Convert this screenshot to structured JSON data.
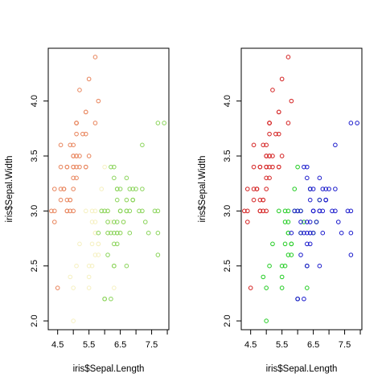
{
  "chart_data": [
    {
      "type": "scatter",
      "xlabel": "iris$Sepal.Length",
      "ylabel": "iris$Sepal.Width",
      "xlim": [
        4.2,
        8.05
      ],
      "ylim": [
        1.92,
        4.48
      ],
      "xticks": [
        "4.5",
        "5.5",
        "6.5",
        "7.5"
      ],
      "xtick_values": [
        4.5,
        5.5,
        6.5,
        7.5
      ],
      "xminor_ticks": [
        5.0,
        6.0,
        7.0,
        8.0
      ],
      "yticks": [
        "2.0",
        "2.5",
        "3.0",
        "3.5",
        "4.0"
      ],
      "ytick_values": [
        2.0,
        2.5,
        3.0,
        3.5,
        4.0
      ],
      "grid": false,
      "marker": "open-circle",
      "series": [
        {
          "color": "#e8835a",
          "x": [
            5.1,
            4.9,
            4.7,
            4.6,
            5.0,
            5.4,
            4.6,
            5.0,
            4.4,
            4.9,
            5.4,
            4.8,
            4.8,
            4.3,
            5.8,
            5.7,
            5.4,
            5.1,
            5.7,
            5.1,
            5.4,
            5.1,
            4.6,
            5.1,
            4.8,
            5.0,
            5.0,
            5.2,
            5.2,
            4.7,
            4.8,
            5.4,
            5.2,
            5.5,
            4.9,
            5.0,
            5.5,
            4.9,
            4.4,
            5.1,
            5.0,
            4.5,
            4.4,
            5.0,
            5.1,
            4.8,
            5.1,
            4.6,
            5.3,
            5.0
          ],
          "y": [
            3.5,
            3.0,
            3.2,
            3.1,
            3.6,
            3.9,
            3.4,
            3.4,
            2.9,
            3.1,
            3.7,
            3.4,
            3.0,
            3.0,
            4.0,
            4.4,
            3.9,
            3.5,
            3.8,
            3.8,
            3.4,
            3.7,
            3.6,
            3.3,
            3.4,
            3.0,
            3.4,
            3.5,
            3.4,
            3.2,
            3.1,
            3.4,
            4.1,
            4.2,
            3.1,
            3.2,
            3.5,
            3.6,
            3.0,
            3.4,
            3.5,
            2.3,
            3.2,
            3.5,
            3.8,
            3.0,
            3.8,
            3.2,
            3.7,
            3.3
          ]
        },
        {
          "color": "#f5f0c0",
          "x": [
            5.5,
            4.9,
            5.2,
            5.0,
            5.6,
            5.7,
            5.8,
            5.6,
            5.7,
            5.5,
            5.4,
            5.6,
            6.0,
            6.0,
            5.5,
            5.7,
            5.8,
            5.0,
            5.6,
            5.7,
            5.1,
            5.9,
            6.1,
            5.8,
            6.3,
            6.1,
            6.4,
            6.6,
            5.9,
            6.2,
            6.0,
            6.5,
            6.3,
            6.7,
            5.7
          ],
          "y": [
            2.3,
            2.4,
            2.7,
            2.0,
            2.9,
            2.6,
            2.7,
            2.5,
            2.8,
            2.4,
            3.0,
            3.0,
            3.4,
            2.2,
            2.5,
            3.0,
            2.6,
            2.3,
            2.7,
            2.9,
            2.5,
            3.0,
            2.8,
            2.7,
            2.5,
            3.0,
            3.2,
            2.9,
            3.2,
            2.9,
            3.0,
            2.8,
            2.3,
            3.1,
            2.8
          ]
        },
        {
          "color": "#8ad45a",
          "x": [
            7.0,
            6.4,
            6.9,
            6.5,
            6.3,
            6.6,
            6.1,
            6.7,
            6.2,
            6.8,
            6.7,
            6.3,
            6.9,
            6.1,
            6.7,
            6.0,
            6.4,
            6.1,
            7.7,
            6.3,
            7.2,
            7.7,
            6.0,
            6.3,
            7.2,
            6.4,
            6.9,
            6.3,
            7.6,
            7.3,
            6.7,
            7.2,
            6.5,
            6.4,
            6.8,
            5.8,
            6.4,
            6.5,
            7.7,
            7.9,
            7.4,
            7.1,
            6.9,
            6.5,
            6.7,
            6.2,
            5.9,
            6.3,
            7.7,
            6.1,
            6.4,
            6.2,
            6.0,
            6.5,
            6.3,
            6.8,
            6.4,
            6.9
          ],
          "y": [
            3.2,
            3.2,
            3.1,
            2.8,
            3.3,
            2.9,
            2.9,
            3.1,
            2.2,
            2.8,
            3.0,
            2.5,
            3.1,
            2.8,
            3.0,
            2.2,
            2.9,
            3.0,
            3.8,
            2.7,
            3.2,
            2.6,
            2.2,
            2.8,
            3.0,
            2.8,
            3.1,
            3.4,
            3.0,
            2.9,
            2.5,
            3.6,
            3.2,
            2.7,
            3.0,
            2.8,
            3.2,
            3.0,
            3.0,
            3.8,
            2.8,
            3.0,
            3.2,
            3.0,
            3.3,
            3.4,
            3.0,
            2.5,
            2.8,
            2.6,
            3.1,
            2.8,
            3.0,
            3.0,
            2.9,
            3.2,
            2.8,
            3.1
          ]
        }
      ]
    },
    {
      "type": "scatter",
      "xlabel": "iris$Sepal.Length",
      "ylabel": "iris$Sepal.Width",
      "xlim": [
        4.2,
        8.05
      ],
      "ylim": [
        1.92,
        4.48
      ],
      "xticks": [
        "4.5",
        "5.5",
        "6.5",
        "7.5"
      ],
      "xtick_values": [
        4.5,
        5.5,
        6.5,
        7.5
      ],
      "xminor_ticks": [
        5.0,
        6.0,
        7.0,
        8.0
      ],
      "yticks": [
        "2.0",
        "2.5",
        "3.0",
        "3.5",
        "4.0"
      ],
      "ytick_values": [
        2.0,
        2.5,
        3.0,
        3.5,
        4.0
      ],
      "grid": false,
      "marker": "open-circle",
      "series": [
        {
          "color": "#d42020",
          "x": [
            5.1,
            4.9,
            4.7,
            4.6,
            5.0,
            5.4,
            4.6,
            5.0,
            4.4,
            4.9,
            5.4,
            4.8,
            4.8,
            4.3,
            5.8,
            5.7,
            5.4,
            5.1,
            5.7,
            5.1,
            5.4,
            5.1,
            4.6,
            5.1,
            4.8,
            5.0,
            5.0,
            5.2,
            5.2,
            4.7,
            4.8,
            5.4,
            5.2,
            5.5,
            4.9,
            5.0,
            5.5,
            4.9,
            4.4,
            5.1,
            5.0,
            4.5,
            4.4,
            5.0,
            5.1,
            4.8,
            5.1,
            4.6,
            5.3,
            5.0
          ],
          "y": [
            3.5,
            3.0,
            3.2,
            3.1,
            3.6,
            3.9,
            3.4,
            3.4,
            2.9,
            3.1,
            3.7,
            3.4,
            3.0,
            3.0,
            4.0,
            4.4,
            3.9,
            3.5,
            3.8,
            3.8,
            3.4,
            3.7,
            3.6,
            3.3,
            3.4,
            3.0,
            3.4,
            3.5,
            3.4,
            3.2,
            3.1,
            3.4,
            4.1,
            4.2,
            3.1,
            3.2,
            3.5,
            3.6,
            3.0,
            3.4,
            3.5,
            2.3,
            3.2,
            3.5,
            3.8,
            3.0,
            3.8,
            3.2,
            3.7,
            3.3
          ]
        },
        {
          "color": "#22cc22",
          "x": [
            5.5,
            4.9,
            5.2,
            5.0,
            5.6,
            5.7,
            5.8,
            5.6,
            5.7,
            5.5,
            5.4,
            5.6,
            6.0,
            6.0,
            5.5,
            5.7,
            5.8,
            5.0,
            5.6,
            5.7,
            5.1,
            5.9,
            6.1,
            5.8,
            6.3,
            6.1,
            6.4,
            6.6,
            5.9,
            6.2,
            6.0,
            6.5,
            6.3,
            6.7,
            5.7
          ],
          "y": [
            2.3,
            2.4,
            2.7,
            2.0,
            2.9,
            2.6,
            2.7,
            2.5,
            2.8,
            2.4,
            3.0,
            3.0,
            3.4,
            2.2,
            2.5,
            3.0,
            2.6,
            2.3,
            2.7,
            2.9,
            2.5,
            3.0,
            2.8,
            2.7,
            2.5,
            3.0,
            3.2,
            2.9,
            3.2,
            2.9,
            3.0,
            2.8,
            2.3,
            3.1,
            2.8
          ]
        },
        {
          "color": "#1a1acc",
          "x": [
            7.0,
            6.4,
            6.9,
            6.5,
            6.3,
            6.6,
            6.1,
            6.7,
            6.2,
            6.8,
            6.7,
            6.3,
            6.9,
            6.1,
            6.7,
            6.0,
            6.4,
            6.1,
            7.7,
            6.3,
            7.2,
            7.7,
            6.0,
            6.3,
            7.2,
            6.4,
            6.9,
            6.3,
            7.6,
            7.3,
            6.7,
            7.2,
            6.5,
            6.4,
            6.8,
            5.8,
            6.4,
            6.5,
            7.7,
            7.9,
            7.4,
            7.1,
            6.9,
            6.5,
            6.7,
            6.2,
            5.9,
            6.3,
            7.7,
            6.1,
            6.4,
            6.2,
            6.0,
            6.5,
            6.3,
            6.8,
            6.4,
            6.9
          ],
          "y": [
            3.2,
            3.2,
            3.1,
            2.8,
            3.3,
            2.9,
            2.9,
            3.1,
            2.2,
            2.8,
            3.0,
            2.5,
            3.1,
            2.8,
            3.0,
            2.2,
            2.9,
            3.0,
            3.8,
            2.7,
            3.2,
            2.6,
            2.2,
            2.8,
            3.0,
            2.8,
            3.1,
            3.4,
            3.0,
            2.9,
            2.5,
            3.6,
            3.2,
            2.7,
            3.0,
            2.8,
            3.2,
            3.0,
            3.0,
            3.8,
            2.8,
            3.0,
            3.2,
            3.0,
            3.3,
            3.4,
            3.0,
            2.5,
            2.8,
            2.6,
            3.1,
            2.8,
            3.0,
            3.0,
            2.9,
            3.2,
            2.8,
            3.1
          ]
        }
      ]
    }
  ]
}
